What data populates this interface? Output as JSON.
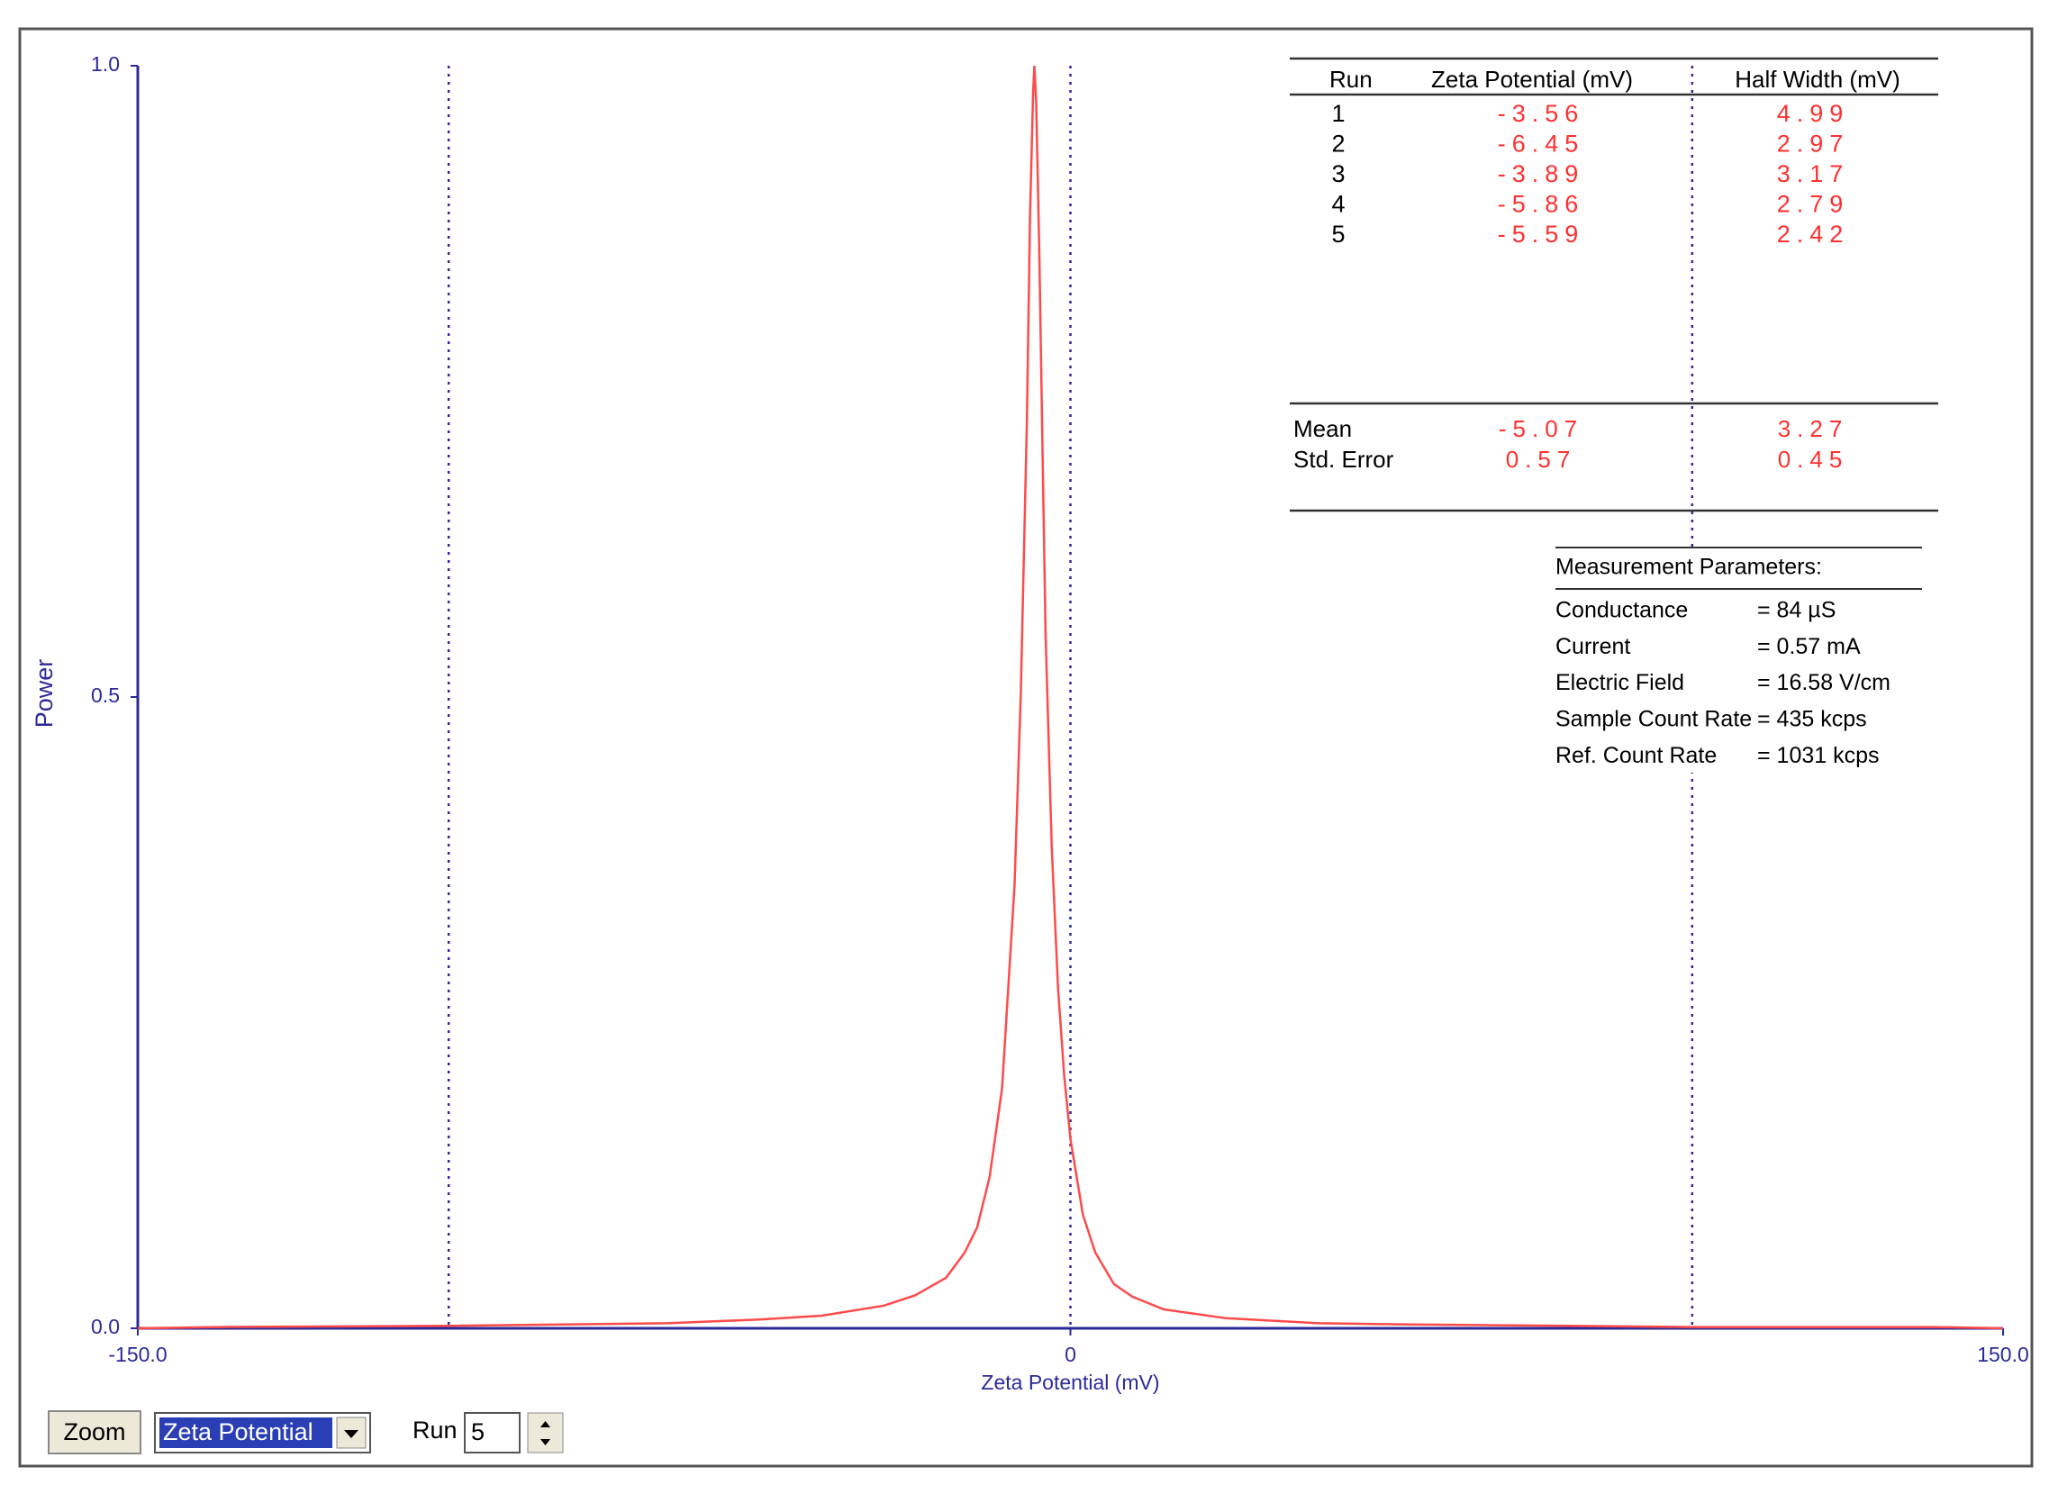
{
  "chart_data": {
    "type": "line",
    "xlabel": "Zeta Potential (mV)",
    "ylabel": "Power",
    "x": [
      -150,
      -137,
      -100,
      -65,
      -50,
      -40,
      -30,
      -25,
      -20,
      -17,
      -15,
      -13,
      -11,
      -9,
      -8,
      -7,
      -6.5,
      -6,
      -5.8,
      -5.5,
      -5,
      -4.5,
      -4,
      -3,
      -2,
      -1,
      0,
      2,
      4,
      7,
      10,
      15,
      25,
      40,
      55,
      80,
      100,
      139,
      150
    ],
    "values": [
      0,
      0.001,
      0.002,
      0.004,
      0.007,
      0.01,
      0.018,
      0.026,
      0.04,
      0.06,
      0.08,
      0.12,
      0.19,
      0.35,
      0.5,
      0.72,
      0.88,
      0.98,
      1.0,
      0.97,
      0.85,
      0.7,
      0.55,
      0.38,
      0.27,
      0.2,
      0.15,
      0.09,
      0.06,
      0.035,
      0.025,
      0.015,
      0.008,
      0.004,
      0.003,
      0.002,
      0.001,
      0.001,
      0
    ],
    "color": "#ff4a4a",
    "xlim": [
      -150,
      150
    ],
    "xticks": [
      {
        "value": -150,
        "label": "-150.0"
      },
      0,
      {
        "value": 150,
        "label": "150.0"
      }
    ],
    "ylim": [
      0,
      1
    ],
    "yticks": [
      {
        "value": 0,
        "label": "0.0"
      },
      {
        "value": 0.5,
        "label": "0.5"
      },
      {
        "value": 1,
        "label": "1.0"
      }
    ],
    "xgrid": [
      -100,
      0,
      100
    ]
  },
  "results": {
    "header": [
      "Run",
      "Zeta Potential (mV)",
      "Half Width (mV)"
    ],
    "rows": [
      [
        "1",
        "-3.56",
        "4.99"
      ],
      [
        "2",
        "-6.45",
        "2.97"
      ],
      [
        "3",
        "-3.89",
        "3.17"
      ],
      [
        "4",
        "-5.86",
        "2.79"
      ],
      [
        "5",
        "-5.59",
        "2.42"
      ]
    ],
    "summary": [
      [
        "Mean",
        "-5.07",
        "3.27"
      ],
      [
        "Std. Error",
        "0.57",
        "0.45"
      ]
    ]
  },
  "parameters": {
    "title": "Measurement Parameters:",
    "rows": [
      [
        "Conductance",
        "= 84 µS"
      ],
      [
        "Current",
        "= 0.57 mA"
      ],
      [
        "Electric Field",
        "= 16.58 V/cm"
      ],
      [
        "Sample Count Rate",
        "= 435 kcps"
      ],
      [
        "Ref. Count Rate",
        "= 1031 kcps"
      ]
    ]
  },
  "controls": {
    "zoom": "Zoom",
    "mode": "Zeta Potential",
    "run_label": "Run",
    "run_value": "5"
  }
}
